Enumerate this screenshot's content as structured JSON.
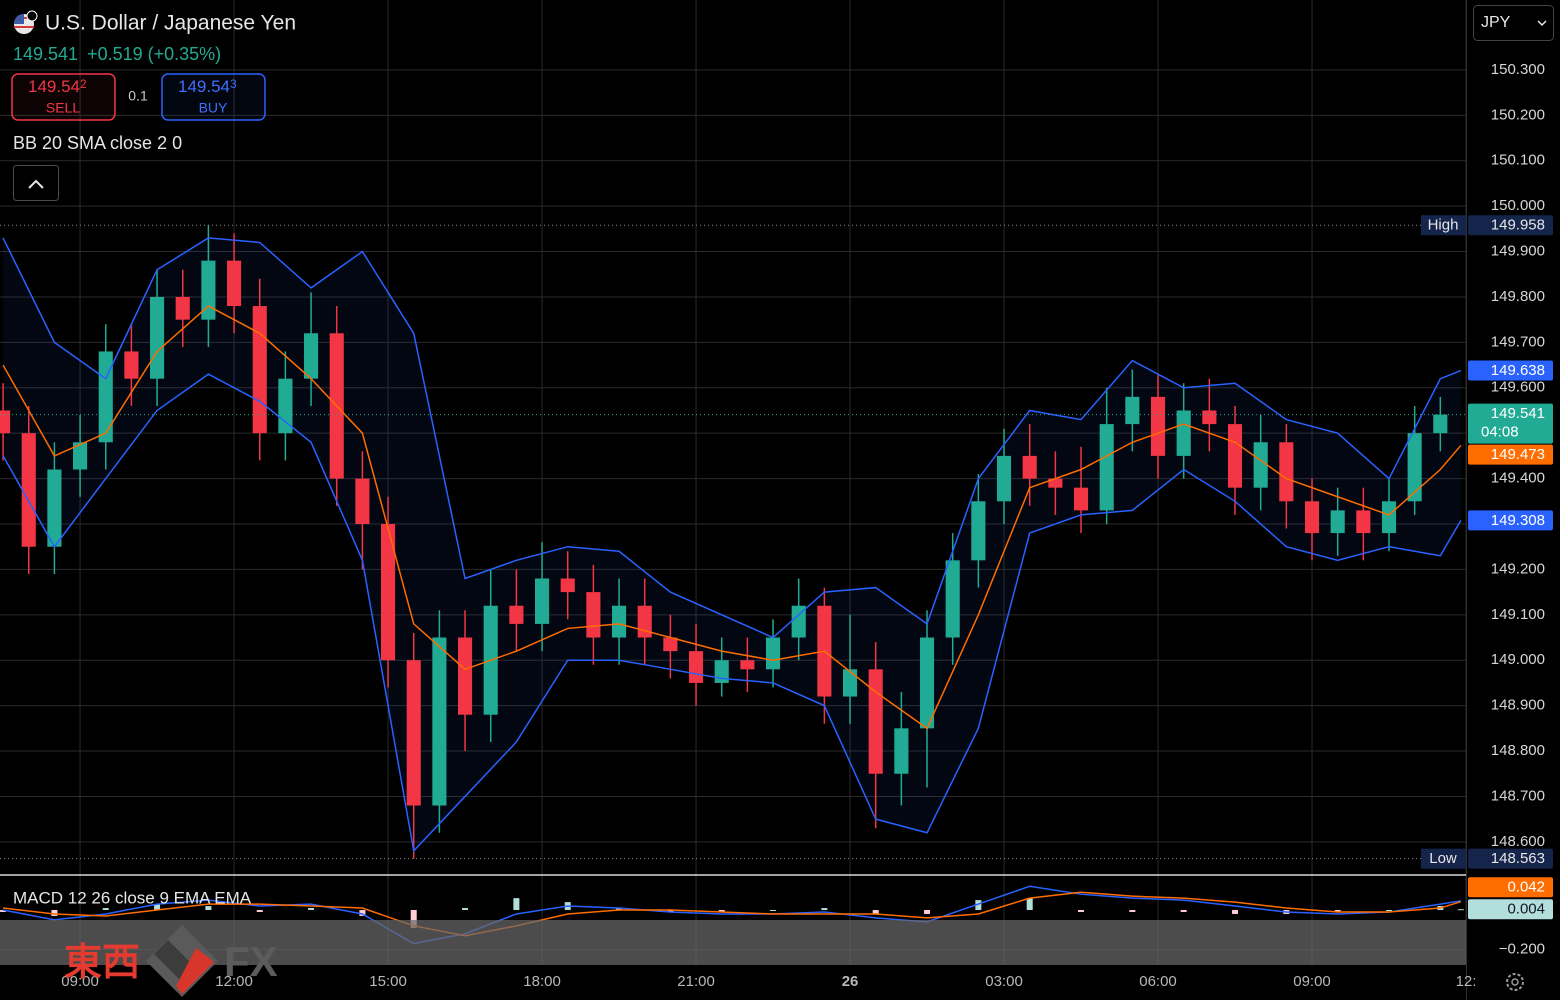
{
  "header": {
    "title": "U.S. Dollar / Japanese Yen",
    "change": "+0.519 (+0.35%)",
    "sell": {
      "price": "149.54",
      "pip": "2",
      "label": "SELL"
    },
    "spread": "0.1",
    "buy": {
      "price": "149.54",
      "pip": "3",
      "label": "BUY"
    },
    "currency": "JPY"
  },
  "watermark": {
    "cjk": "東西",
    "latin": "FX"
  },
  "chart_data": [
    {
      "type": "candlestick",
      "indicator_label": "BB 20 SMA close 2 0",
      "up_color": "#22ab94",
      "down_color": "#f23645",
      "x": [
        7.5,
        8,
        8.5,
        9,
        9.5,
        10,
        10.5,
        11,
        11.5,
        12,
        12.5,
        13,
        13.5,
        14,
        14.5,
        15,
        15.5,
        16,
        16.5,
        17,
        17.5,
        18,
        18.5,
        19,
        19.5,
        20,
        20.5,
        21,
        21.5,
        22,
        22.5,
        23,
        23.5,
        24,
        24.5,
        25,
        25.5,
        26,
        26.5,
        27,
        27.5,
        28,
        28.5,
        29,
        29.5,
        30,
        30.5,
        31,
        31.5,
        32,
        32.5,
        33,
        33.5,
        34,
        34.5,
        35,
        35.5
      ],
      "open": [
        149.55,
        149.5,
        149.25,
        149.42,
        149.48,
        149.68,
        149.62,
        149.8,
        149.75,
        149.88,
        149.78,
        149.5,
        149.62,
        149.72,
        149.4,
        149.3,
        149.0,
        148.68,
        149.05,
        148.88,
        149.12,
        149.08,
        149.18,
        149.15,
        149.05,
        149.12,
        149.05,
        149.02,
        148.95,
        149.0,
        148.98,
        149.05,
        149.12,
        148.92,
        148.98,
        148.75,
        148.85,
        149.05,
        149.22,
        149.35,
        149.45,
        149.4,
        149.38,
        149.33,
        149.52,
        149.58,
        149.45,
        149.55,
        149.52,
        149.38,
        149.48,
        149.35,
        149.28,
        149.33,
        149.28,
        149.35,
        149.5
      ],
      "high": [
        149.61,
        149.56,
        149.48,
        149.54,
        149.74,
        149.74,
        149.86,
        149.86,
        149.958,
        149.94,
        149.84,
        149.68,
        149.81,
        149.78,
        149.46,
        149.36,
        149.06,
        149.11,
        149.11,
        149.2,
        149.2,
        149.26,
        149.24,
        149.21,
        149.18,
        149.18,
        149.1,
        149.08,
        149.05,
        149.05,
        149.09,
        149.18,
        149.16,
        149.1,
        149.04,
        148.93,
        149.11,
        149.28,
        149.41,
        149.51,
        149.52,
        149.46,
        149.47,
        149.6,
        149.64,
        149.63,
        149.61,
        149.62,
        149.56,
        149.54,
        149.52,
        149.4,
        149.38,
        149.38,
        149.4,
        149.56,
        149.58
      ],
      "low": [
        149.44,
        149.19,
        149.19,
        149.36,
        149.42,
        149.56,
        149.56,
        149.69,
        149.69,
        149.72,
        149.44,
        149.44,
        149.56,
        149.34,
        149.2,
        148.94,
        148.563,
        148.62,
        148.8,
        148.82,
        149.02,
        149.02,
        149.09,
        148.99,
        148.99,
        148.99,
        148.96,
        148.9,
        148.92,
        148.93,
        148.94,
        149.0,
        148.86,
        148.86,
        148.63,
        148.68,
        148.72,
        148.99,
        149.16,
        149.3,
        149.34,
        149.32,
        149.28,
        149.3,
        149.46,
        149.4,
        149.4,
        149.46,
        149.32,
        149.33,
        149.29,
        149.22,
        149.23,
        149.22,
        149.24,
        149.32,
        149.46
      ],
      "close": [
        149.5,
        149.25,
        149.42,
        149.48,
        149.68,
        149.62,
        149.8,
        149.75,
        149.88,
        149.78,
        149.5,
        149.62,
        149.72,
        149.4,
        149.3,
        149.0,
        148.68,
        149.05,
        148.88,
        149.12,
        149.08,
        149.18,
        149.15,
        149.05,
        149.12,
        149.05,
        149.02,
        148.95,
        149.0,
        148.98,
        149.05,
        149.12,
        148.92,
        148.98,
        148.75,
        148.85,
        149.05,
        149.22,
        149.35,
        149.45,
        149.4,
        149.38,
        149.33,
        149.52,
        149.58,
        149.45,
        149.55,
        149.52,
        149.38,
        149.48,
        149.35,
        149.28,
        149.33,
        149.28,
        149.35,
        149.5,
        149.541
      ],
      "countdown": "04:08",
      "high_label": "High",
      "low_label": "Low",
      "band_fill": "rgba(41,98,255,0.07)",
      "overlay_x": [
        7.5,
        8.5,
        9.5,
        10.5,
        11.5,
        12.5,
        13.5,
        14.5,
        15.5,
        16.5,
        17.5,
        18.5,
        19.5,
        20.5,
        21.5,
        22.5,
        23.5,
        24.5,
        25.5,
        26.5,
        27.5,
        28.5,
        29.5,
        30.5,
        31.5,
        32.5,
        33.5,
        34.5,
        35.5,
        35.9
      ],
      "overlays": [
        {
          "color": "#2962ff",
          "values": [
            149.93,
            149.7,
            149.62,
            149.86,
            149.93,
            149.92,
            149.82,
            149.9,
            149.72,
            149.18,
            149.22,
            149.25,
            149.24,
            149.15,
            149.1,
            149.05,
            149.15,
            149.16,
            149.08,
            149.4,
            149.55,
            149.53,
            149.66,
            149.6,
            149.61,
            149.53,
            149.5,
            149.4,
            149.62,
            149.638
          ]
        },
        {
          "color": "#ff6d00",
          "values": [
            149.65,
            149.45,
            149.5,
            149.68,
            149.78,
            149.72,
            149.62,
            149.5,
            149.08,
            148.98,
            149.02,
            149.07,
            149.08,
            149.05,
            149.02,
            149.0,
            149.02,
            148.93,
            148.85,
            149.1,
            149.38,
            149.42,
            149.48,
            149.52,
            149.48,
            149.4,
            149.36,
            149.32,
            149.42,
            149.473
          ]
        },
        {
          "color": "#2962ff",
          "values": [
            149.45,
            149.25,
            149.4,
            149.55,
            149.63,
            149.57,
            149.48,
            149.22,
            148.58,
            148.7,
            148.82,
            149.0,
            149.0,
            148.98,
            148.96,
            148.95,
            148.9,
            148.65,
            148.62,
            148.85,
            149.28,
            149.32,
            149.33,
            149.42,
            149.35,
            149.25,
            149.22,
            149.25,
            149.23,
            149.308
          ]
        }
      ],
      "xlim": [
        7.44,
        36
      ],
      "ylim": [
        148.527,
        150.454
      ],
      "xticks": [
        {
          "value": 9,
          "label": "09:00"
        },
        {
          "value": 12,
          "label": "12:00"
        },
        {
          "value": 15,
          "label": "15:00"
        },
        {
          "value": 18,
          "label": "18:00"
        },
        {
          "value": 21,
          "label": "21:00"
        },
        {
          "value": 24,
          "label": "26",
          "bold": true
        },
        {
          "value": 27,
          "label": "03:00"
        },
        {
          "value": 30,
          "label": "06:00"
        },
        {
          "value": 33,
          "label": "09:00"
        },
        {
          "value": 36,
          "label": "12:"
        }
      ],
      "yticks": [
        {
          "value": 150.3,
          "label": "150.300"
        },
        {
          "value": 150.2,
          "label": "150.200"
        },
        {
          "value": 150.1,
          "label": "150.100"
        },
        {
          "value": 150.0,
          "label": "150.000"
        },
        {
          "value": 149.9,
          "label": "149.900"
        },
        {
          "value": 149.8,
          "label": "149.800"
        },
        {
          "value": 149.7,
          "label": "149.700"
        },
        {
          "value": 149.6,
          "label": "149.600"
        },
        {
          "value": 149.5,
          "label": "149.500"
        },
        {
          "value": 149.4,
          "label": "149.400"
        },
        {
          "value": 149.3,
          "label": "149.300"
        },
        {
          "value": 149.2,
          "label": "149.200"
        },
        {
          "value": 149.1,
          "label": "149.100"
        },
        {
          "value": 149.0,
          "label": "149.000"
        },
        {
          "value": 148.9,
          "label": "148.900"
        },
        {
          "value": 148.8,
          "label": "148.800"
        },
        {
          "value": 148.7,
          "label": "148.700"
        },
        {
          "value": 148.6,
          "label": "148.600"
        }
      ],
      "grid": true
    },
    {
      "type": "macd",
      "indicator_label": "MACD 12 26 close 9 EMA EMA",
      "x": [
        7.5,
        8.5,
        9.5,
        10.5,
        11.5,
        12.5,
        13.5,
        14.5,
        15.5,
        16.5,
        17.5,
        18.5,
        19.5,
        20.5,
        21.5,
        22.5,
        23.5,
        24.5,
        25.5,
        26.5,
        27.5,
        28.5,
        29.5,
        30.5,
        31.5,
        32.5,
        33.5,
        34.5,
        35.5,
        35.9
      ],
      "macd": [
        0.0,
        -0.05,
        -0.02,
        0.03,
        0.05,
        0.02,
        0.03,
        -0.02,
        -0.17,
        -0.12,
        -0.02,
        0.02,
        0.01,
        -0.01,
        -0.02,
        -0.02,
        -0.01,
        -0.04,
        -0.06,
        0.03,
        0.12,
        0.08,
        0.06,
        0.05,
        0.02,
        -0.01,
        -0.02,
        -0.01,
        0.03,
        0.046
      ],
      "signal": [
        0.01,
        -0.02,
        -0.03,
        0.0,
        0.03,
        0.03,
        0.02,
        0.01,
        -0.08,
        -0.13,
        -0.08,
        -0.02,
        0.0,
        0.0,
        -0.01,
        -0.02,
        -0.02,
        -0.02,
        -0.04,
        -0.02,
        0.06,
        0.09,
        0.07,
        0.06,
        0.04,
        0.01,
        -0.01,
        -0.01,
        0.01,
        0.042
      ],
      "histogram": [
        -0.01,
        -0.03,
        0.01,
        0.03,
        0.02,
        -0.01,
        0.01,
        -0.03,
        -0.09,
        0.01,
        0.06,
        0.04,
        0.01,
        -0.01,
        -0.01,
        0.0,
        0.01,
        -0.02,
        -0.02,
        0.05,
        0.06,
        -0.01,
        -0.01,
        -0.01,
        -0.02,
        -0.02,
        -0.01,
        0.0,
        0.02,
        0.004
      ],
      "macd_color": "#2962ff",
      "signal_color": "#ff6d00",
      "up_color": "#b2dfdb",
      "down_color": "#ffcdd2",
      "xlim": [
        7.44,
        36
      ],
      "ylim": [
        -0.278,
        0.177
      ],
      "yticks": [
        {
          "value": -0.2,
          "label": "−0.200"
        }
      ]
    }
  ]
}
